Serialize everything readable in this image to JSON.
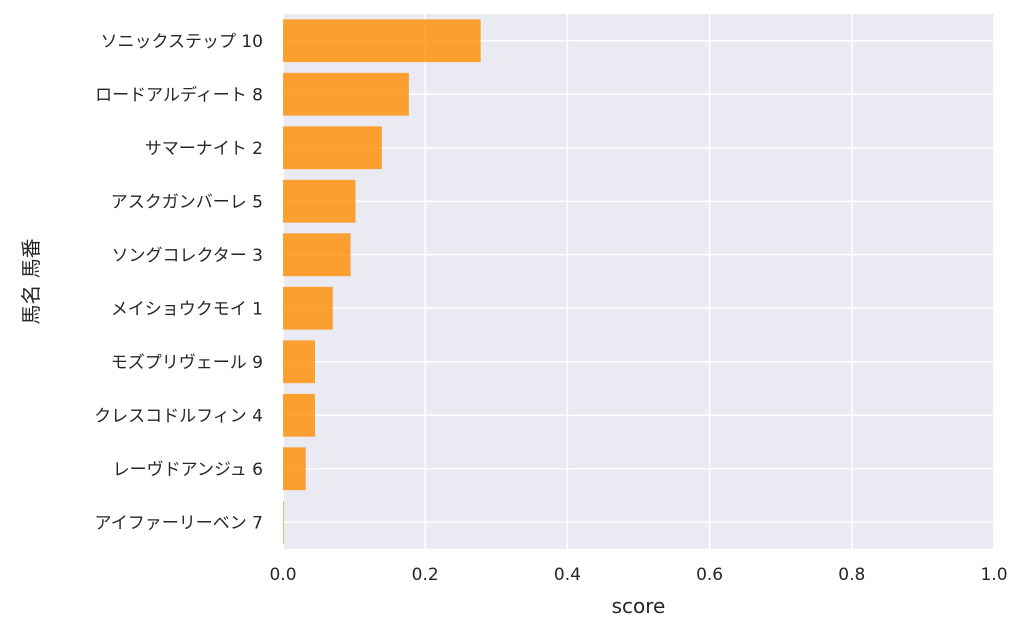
{
  "chart_data": {
    "type": "bar",
    "orientation": "horizontal",
    "categories": [
      "ソニックステップ 10",
      "ロードアルディート 8",
      "サマーナイト 2",
      "アスクガンバーレ 5",
      "ソングコレクター 3",
      "メイショウクモイ 1",
      "モズプリヴェール 9",
      "クレスコドルフィン 4",
      "レーヴドアンジュ 6",
      "アイファーリーベン 7"
    ],
    "values": [
      0.278,
      0.177,
      0.139,
      0.102,
      0.095,
      0.07,
      0.045,
      0.045,
      0.032,
      0.001
    ],
    "xlabel": "score",
    "ylabel": "馬名 馬番",
    "xlim": [
      0.0,
      1.0
    ],
    "xticks": [
      "0.0",
      "0.2",
      "0.4",
      "0.6",
      "0.8",
      "1.0"
    ],
    "grid": true,
    "bar_color": "#ff8c00",
    "background_color": "#eaeaf2",
    "grid_color": "#ffffff"
  }
}
